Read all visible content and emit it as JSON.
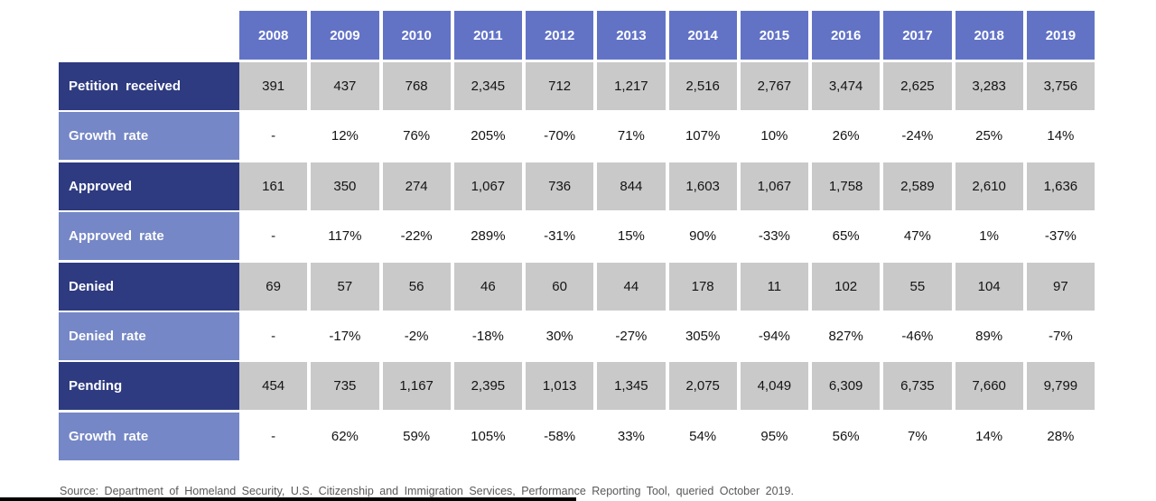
{
  "chart_data": {
    "type": "table",
    "columns": [
      "2008",
      "2009",
      "2010",
      "2011",
      "2012",
      "2013",
      "2014",
      "2015",
      "2016",
      "2017",
      "2018",
      "2019"
    ],
    "rows": [
      {
        "label": "Petition received",
        "type": "dark",
        "values": [
          "391",
          "437",
          "768",
          "2,345",
          "712",
          "1,217",
          "2,516",
          "2,767",
          "3,474",
          "2,625",
          "3,283",
          "3,756"
        ]
      },
      {
        "label": "Growth rate",
        "type": "light",
        "values": [
          "-",
          "12%",
          "76%",
          "205%",
          "-70%",
          "71%",
          "107%",
          "10%",
          "26%",
          "-24%",
          "25%",
          "14%"
        ]
      },
      {
        "label": "Approved",
        "type": "dark",
        "values": [
          "161",
          "350",
          "274",
          "1,067",
          "736",
          "844",
          "1,603",
          "1,067",
          "1,758",
          "2,589",
          "2,610",
          "1,636"
        ]
      },
      {
        "label": "Approved rate",
        "type": "light",
        "values": [
          "-",
          "117%",
          "-22%",
          "289%",
          "-31%",
          "15%",
          "90%",
          "-33%",
          "65%",
          "47%",
          "1%",
          "-37%"
        ]
      },
      {
        "label": "Denied",
        "type": "dark",
        "values": [
          "69",
          "57",
          "56",
          "46",
          "60",
          "44",
          "178",
          "11",
          "102",
          "55",
          "104",
          "97"
        ]
      },
      {
        "label": "Denied rate",
        "type": "light",
        "values": [
          "-",
          "-17%",
          "-2%",
          "-18%",
          "30%",
          "-27%",
          "305%",
          "-94%",
          "827%",
          "-46%",
          "89%",
          "-7%"
        ]
      },
      {
        "label": "Pending",
        "type": "dark",
        "values": [
          "454",
          "735",
          "1,167",
          "2,395",
          "1,013",
          "1,345",
          "2,075",
          "4,049",
          "6,309",
          "6,735",
          "7,660",
          "9,799"
        ]
      },
      {
        "label": "Growth rate",
        "type": "light",
        "values": [
          "-",
          "62%",
          "59%",
          "105%",
          "-58%",
          "33%",
          "54%",
          "95%",
          "56%",
          "7%",
          "14%",
          "28%"
        ]
      }
    ],
    "title": "",
    "legend": "none",
    "grid": "white cell separators"
  },
  "source_note": "Source: Department of Homeland Security, U.S. Citizenship and Immigration Services, Performance Reporting Tool, queried October 2019.",
  "colors": {
    "header_bg": "#6273C6",
    "dark_row_bg": "#2E3B80",
    "light_row_bg": "#7587C6",
    "data_cell_bg": "#C9C9C9",
    "source_text": "#595959"
  }
}
